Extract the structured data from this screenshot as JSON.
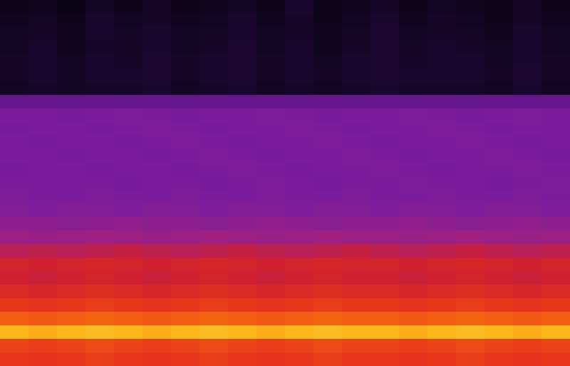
{
  "chart_data": {
    "type": "heatmap",
    "tick_labels": false,
    "zlim": [
      0,
      100
    ],
    "cells": [
      [
        8,
        10,
        7,
        11,
        9,
        12,
        8,
        10,
        11,
        9,
        13,
        8,
        10,
        12,
        9,
        11,
        10,
        8,
        12,
        9
      ],
      [
        10,
        12,
        9,
        13,
        11,
        12,
        10,
        11,
        13,
        10,
        12,
        9,
        11,
        13,
        10,
        12,
        11,
        9,
        12,
        10
      ],
      [
        11,
        12,
        10,
        13,
        12,
        13,
        11,
        12,
        13,
        11,
        12,
        10,
        12,
        14,
        11,
        12,
        12,
        10,
        13,
        11
      ],
      [
        11,
        13,
        10,
        12,
        12,
        13,
        11,
        12,
        14,
        11,
        13,
        10,
        12,
        14,
        12,
        13,
        12,
        11,
        13,
        11
      ],
      [
        12,
        13,
        11,
        13,
        12,
        14,
        12,
        13,
        14,
        12,
        13,
        11,
        13,
        14,
        12,
        13,
        13,
        11,
        13,
        12
      ],
      [
        12,
        13,
        11,
        13,
        13,
        14,
        12,
        13,
        14,
        12,
        13,
        12,
        13,
        14,
        13,
        13,
        13,
        12,
        14,
        12
      ],
      [
        11,
        12,
        11,
        12,
        12,
        13,
        11,
        12,
        13,
        11,
        12,
        11,
        12,
        13,
        12,
        12,
        12,
        11,
        13,
        11
      ],
      [
        38,
        39,
        38,
        39,
        38,
        39,
        38,
        39,
        38,
        39,
        38,
        39,
        38,
        39,
        38,
        39,
        38,
        39,
        38,
        39
      ],
      [
        45,
        45,
        44,
        45,
        46,
        45,
        44,
        45,
        45,
        46,
        45,
        44,
        45,
        45,
        46,
        45,
        44,
        45,
        46,
        45
      ],
      [
        44,
        45,
        45,
        44,
        45,
        46,
        45,
        44,
        45,
        45,
        46,
        45,
        44,
        45,
        45,
        46,
        45,
        44,
        45,
        45
      ],
      [
        45,
        44,
        45,
        45,
        44,
        45,
        46,
        45,
        44,
        45,
        45,
        46,
        45,
        44,
        45,
        45,
        46,
        45,
        44,
        45
      ],
      [
        45,
        45,
        44,
        45,
        45,
        44,
        45,
        46,
        45,
        44,
        45,
        45,
        46,
        45,
        44,
        45,
        45,
        46,
        45,
        44
      ],
      [
        44,
        45,
        45,
        44,
        45,
        45,
        44,
        45,
        46,
        45,
        44,
        45,
        45,
        46,
        45,
        44,
        45,
        45,
        46,
        45
      ],
      [
        45,
        45,
        45,
        45,
        44,
        45,
        45,
        44,
        45,
        46,
        45,
        44,
        45,
        45,
        46,
        45,
        45,
        44,
        45,
        46
      ],
      [
        46,
        45,
        45,
        46,
        45,
        45,
        46,
        45,
        45,
        46,
        45,
        45,
        46,
        45,
        45,
        46,
        45,
        45,
        46,
        45
      ],
      [
        47,
        46,
        47,
        47,
        46,
        47,
        47,
        46,
        47,
        47,
        46,
        47,
        47,
        46,
        47,
        47,
        46,
        47,
        47,
        46
      ],
      [
        50,
        50,
        49,
        50,
        51,
        50,
        50,
        49,
        50,
        51,
        50,
        49,
        50,
        50,
        51,
        50,
        49,
        50,
        51,
        50
      ],
      [
        54,
        53,
        54,
        55,
        54,
        53,
        54,
        55,
        54,
        53,
        54,
        55,
        54,
        54,
        53,
        54,
        55,
        54,
        53,
        54
      ],
      [
        59,
        60,
        59,
        60,
        61,
        60,
        59,
        60,
        61,
        60,
        59,
        60,
        61,
        60,
        59,
        60,
        61,
        60,
        59,
        60
      ],
      [
        64,
        63,
        64,
        65,
        64,
        63,
        64,
        65,
        64,
        63,
        64,
        65,
        64,
        64,
        63,
        64,
        65,
        64,
        63,
        64
      ],
      [
        63,
        62,
        63,
        64,
        63,
        62,
        63,
        64,
        63,
        62,
        63,
        64,
        63,
        63,
        62,
        63,
        64,
        63,
        62,
        63
      ],
      [
        66,
        65,
        66,
        67,
        66,
        65,
        66,
        67,
        66,
        65,
        66,
        67,
        66,
        66,
        65,
        66,
        67,
        66,
        65,
        66
      ],
      [
        70,
        69,
        70,
        71,
        70,
        69,
        70,
        71,
        70,
        69,
        70,
        71,
        70,
        70,
        69,
        70,
        71,
        70,
        69,
        70
      ],
      [
        76,
        75,
        76,
        77,
        76,
        75,
        76,
        77,
        76,
        75,
        76,
        77,
        76,
        76,
        75,
        76,
        77,
        76,
        75,
        76
      ],
      [
        85,
        84,
        85,
        86,
        85,
        84,
        85,
        86,
        85,
        84,
        85,
        86,
        85,
        85,
        84,
        85,
        86,
        85,
        84,
        85
      ],
      [
        72,
        71,
        72,
        73,
        72,
        71,
        72,
        73,
        72,
        71,
        72,
        73,
        72,
        72,
        71,
        72,
        73,
        72,
        71,
        72
      ],
      [
        70,
        69,
        70,
        71,
        70,
        69,
        70,
        71,
        70,
        69,
        70,
        71,
        70,
        70,
        69,
        70,
        71,
        70,
        69,
        70
      ]
    ]
  }
}
